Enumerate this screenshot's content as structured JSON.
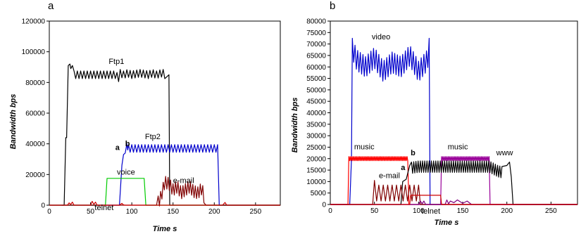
{
  "chart_data": [
    {
      "panel": "a",
      "type": "line",
      "xlabel": "Time s",
      "ylabel": "Bandwidth bps",
      "xlim": [
        0,
        280
      ],
      "ylim": [
        0,
        120000
      ],
      "xticks": [
        0,
        50,
        100,
        150,
        200,
        250
      ],
      "yticks": [
        0,
        20000,
        40000,
        60000,
        80000,
        100000,
        120000
      ],
      "series": [
        {
          "name": "Ftp1",
          "color": "#000000",
          "x": [
            15,
            18,
            20,
            21,
            23,
            25,
            26,
            28,
            30,
            35,
            40,
            50,
            60,
            70,
            80,
            84,
            85,
            86,
            90,
            95,
            100,
            110,
            120,
            125,
            130,
            136,
            137,
            138,
            140,
            145,
            146,
            147,
            150,
            280
          ],
          "y": [
            0,
            0,
            44000,
            44000,
            91000,
            92000,
            89000,
            91000,
            85000,
            85000,
            85000,
            85000,
            85000,
            85000,
            85000,
            83000,
            64000,
            86000,
            85000,
            86000,
            85000,
            86000,
            85000,
            86000,
            85000,
            86000,
            104000,
            86000,
            85000,
            85000,
            0,
            0,
            0,
            0
          ],
          "oscillation": {
            "x_start": 30,
            "x_end": 140,
            "amplitude": 2500,
            "period": 4
          }
        },
        {
          "name": "Ftp2",
          "color": "#0000cc",
          "x": [
            0,
            85,
            88,
            90,
            92,
            94,
            95,
            96,
            100,
            110,
            120,
            130,
            140,
            150,
            160,
            170,
            180,
            190,
            200,
            203,
            205,
            206,
            280
          ],
          "y": [
            0,
            0,
            26000,
            33000,
            34000,
            40000,
            36000,
            37000,
            37000,
            37000,
            37000,
            37000,
            37000,
            37000,
            37000,
            37000,
            37000,
            37000,
            37000,
            37000,
            37000,
            0,
            0
          ],
          "oscillation": {
            "x_start": 96,
            "x_end": 205,
            "amplitude": 2500,
            "period": 4
          }
        },
        {
          "name": "voice",
          "color": "#00cc00",
          "x": [
            0,
            68,
            70,
            115,
            117,
            280
          ],
          "y": [
            0,
            0,
            17500,
            17500,
            0,
            0
          ]
        },
        {
          "name": "e-mail",
          "color": "#800000",
          "x": [
            0,
            130,
            135,
            140,
            145,
            150,
            155,
            160,
            165,
            170,
            175,
            180,
            185,
            190,
            280
          ],
          "y": [
            0,
            0,
            5000,
            15000,
            14000,
            10000,
            12000,
            8000,
            10000,
            12000,
            9000,
            8000,
            11000,
            0,
            0
          ],
          "oscillation": {
            "x_start": 132,
            "x_end": 188,
            "amplitude": 4000,
            "period": 3
          }
        },
        {
          "name": "telnet",
          "color": "#cc0000",
          "x": [
            0,
            22,
            24,
            26,
            28,
            30,
            50,
            52,
            54,
            56,
            58,
            60,
            85,
            88,
            90,
            92,
            210,
            213,
            215,
            280
          ],
          "y": [
            0,
            0,
            1500,
            500,
            2000,
            0,
            0,
            2500,
            500,
            2000,
            0,
            0,
            0,
            1200,
            200,
            0,
            0,
            1800,
            0,
            0
          ]
        }
      ],
      "annotations": [
        {
          "text": "Ftp1",
          "x": 72,
          "y": 92000
        },
        {
          "text": "Ftp2",
          "x": 116,
          "y": 43000
        },
        {
          "text": "voice",
          "x": 82,
          "y": 20000
        },
        {
          "text": "e-mail",
          "x": 150,
          "y": 14500
        },
        {
          "text": "telnet",
          "x": 55,
          "y": -3200
        },
        {
          "text": "a",
          "x": 80,
          "y": 36000,
          "bold": true
        },
        {
          "text": "b",
          "x": 92,
          "y": 38500,
          "bold": true
        }
      ]
    },
    {
      "panel": "b",
      "type": "line",
      "xlabel": "Time s",
      "ylabel": "Bandwidth bps",
      "xlim": [
        0,
        280
      ],
      "ylim": [
        0,
        80000
      ],
      "xticks": [
        0,
        50,
        100,
        150,
        200,
        250
      ],
      "yticks": [
        0,
        5000,
        10000,
        15000,
        20000,
        25000,
        30000,
        35000,
        40000,
        45000,
        50000,
        55000,
        60000,
        65000,
        70000,
        75000,
        80000
      ],
      "series": [
        {
          "name": "video",
          "color": "#0000cc",
          "x": [
            0,
            22,
            24,
            25,
            30,
            40,
            50,
            60,
            70,
            80,
            90,
            100,
            110,
            112,
            113,
            280
          ],
          "y": [
            0,
            0,
            20000,
            68000,
            63000,
            60000,
            64000,
            58000,
            62000,
            60000,
            65000,
            58000,
            63000,
            68000,
            0,
            0
          ],
          "oscillation": {
            "x_start": 25,
            "x_end": 112,
            "amplitude": 4500,
            "period": 3
          }
        },
        {
          "name": "music",
          "color": "#ff0000",
          "x": [
            0,
            20,
            21,
            88,
            89,
            280
          ],
          "y": [
            0,
            0,
            20000,
            20000,
            0,
            0
          ],
          "oscillation": {
            "x_start": 21,
            "x_end": 88,
            "amplitude": 900,
            "period": 1.5
          }
        },
        {
          "name": "music",
          "color": "#990099",
          "x": [
            0,
            125,
            126,
            180,
            181,
            280
          ],
          "y": [
            0,
            0,
            20000,
            20000,
            0,
            0
          ],
          "oscillation": {
            "x_start": 126,
            "x_end": 180,
            "amplitude": 900,
            "period": 1.5
          }
        },
        {
          "name": "www",
          "color": "#000000",
          "x": [
            0,
            80,
            82,
            86,
            88,
            90,
            92,
            100,
            120,
            140,
            160,
            180,
            190,
            195,
            200,
            203,
            205,
            207,
            280
          ],
          "y": [
            0,
            0,
            10000,
            11000,
            14000,
            17000,
            16000,
            16500,
            16500,
            16500,
            16500,
            16500,
            14500,
            14000,
            17000,
            18500,
            12000,
            0,
            0
          ],
          "oscillation": {
            "x_start": 92,
            "x_end": 195,
            "amplitude": 2500,
            "period": 2.5
          }
        },
        {
          "name": "e-mail",
          "color": "#800000",
          "x": [
            0,
            48,
            50,
            52,
            100,
            102,
            280
          ],
          "y": [
            0,
            0,
            7000,
            5000,
            5000,
            0,
            0
          ],
          "oscillation": {
            "x_start": 50,
            "x_end": 100,
            "amplitude": 3500,
            "period": 5
          }
        },
        {
          "name": "telnet",
          "color": "#800080",
          "x": [
            0,
            100,
            102,
            104,
            106,
            108,
            130,
            132,
            134,
            136,
            140,
            144,
            150,
            155,
            160,
            280
          ],
          "y": [
            0,
            0,
            1500,
            300,
            1500,
            0,
            0,
            2000,
            300,
            1500,
            800,
            2000,
            500,
            1500,
            0,
            0
          ]
        },
        {
          "name": "",
          "color": "#cc0000",
          "x": [
            0,
            90,
            91,
            125,
            126,
            280
          ],
          "y": [
            0,
            0,
            4000,
            4000,
            0,
            0
          ]
        }
      ],
      "annotations": [
        {
          "text": "video",
          "x": 47,
          "y": 72000
        },
        {
          "text": "music",
          "x": 27,
          "y": 24000
        },
        {
          "text": "music",
          "x": 133,
          "y": 24000
        },
        {
          "text": "www",
          "x": 188,
          "y": 21500
        },
        {
          "text": "e-mail",
          "x": 55,
          "y": 11500
        },
        {
          "text": "telnet",
          "x": 103,
          "y": -4000
        },
        {
          "text": "a",
          "x": 80,
          "y": 15000,
          "bold": true
        },
        {
          "text": "b",
          "x": 91,
          "y": 21500,
          "bold": true
        }
      ]
    }
  ]
}
